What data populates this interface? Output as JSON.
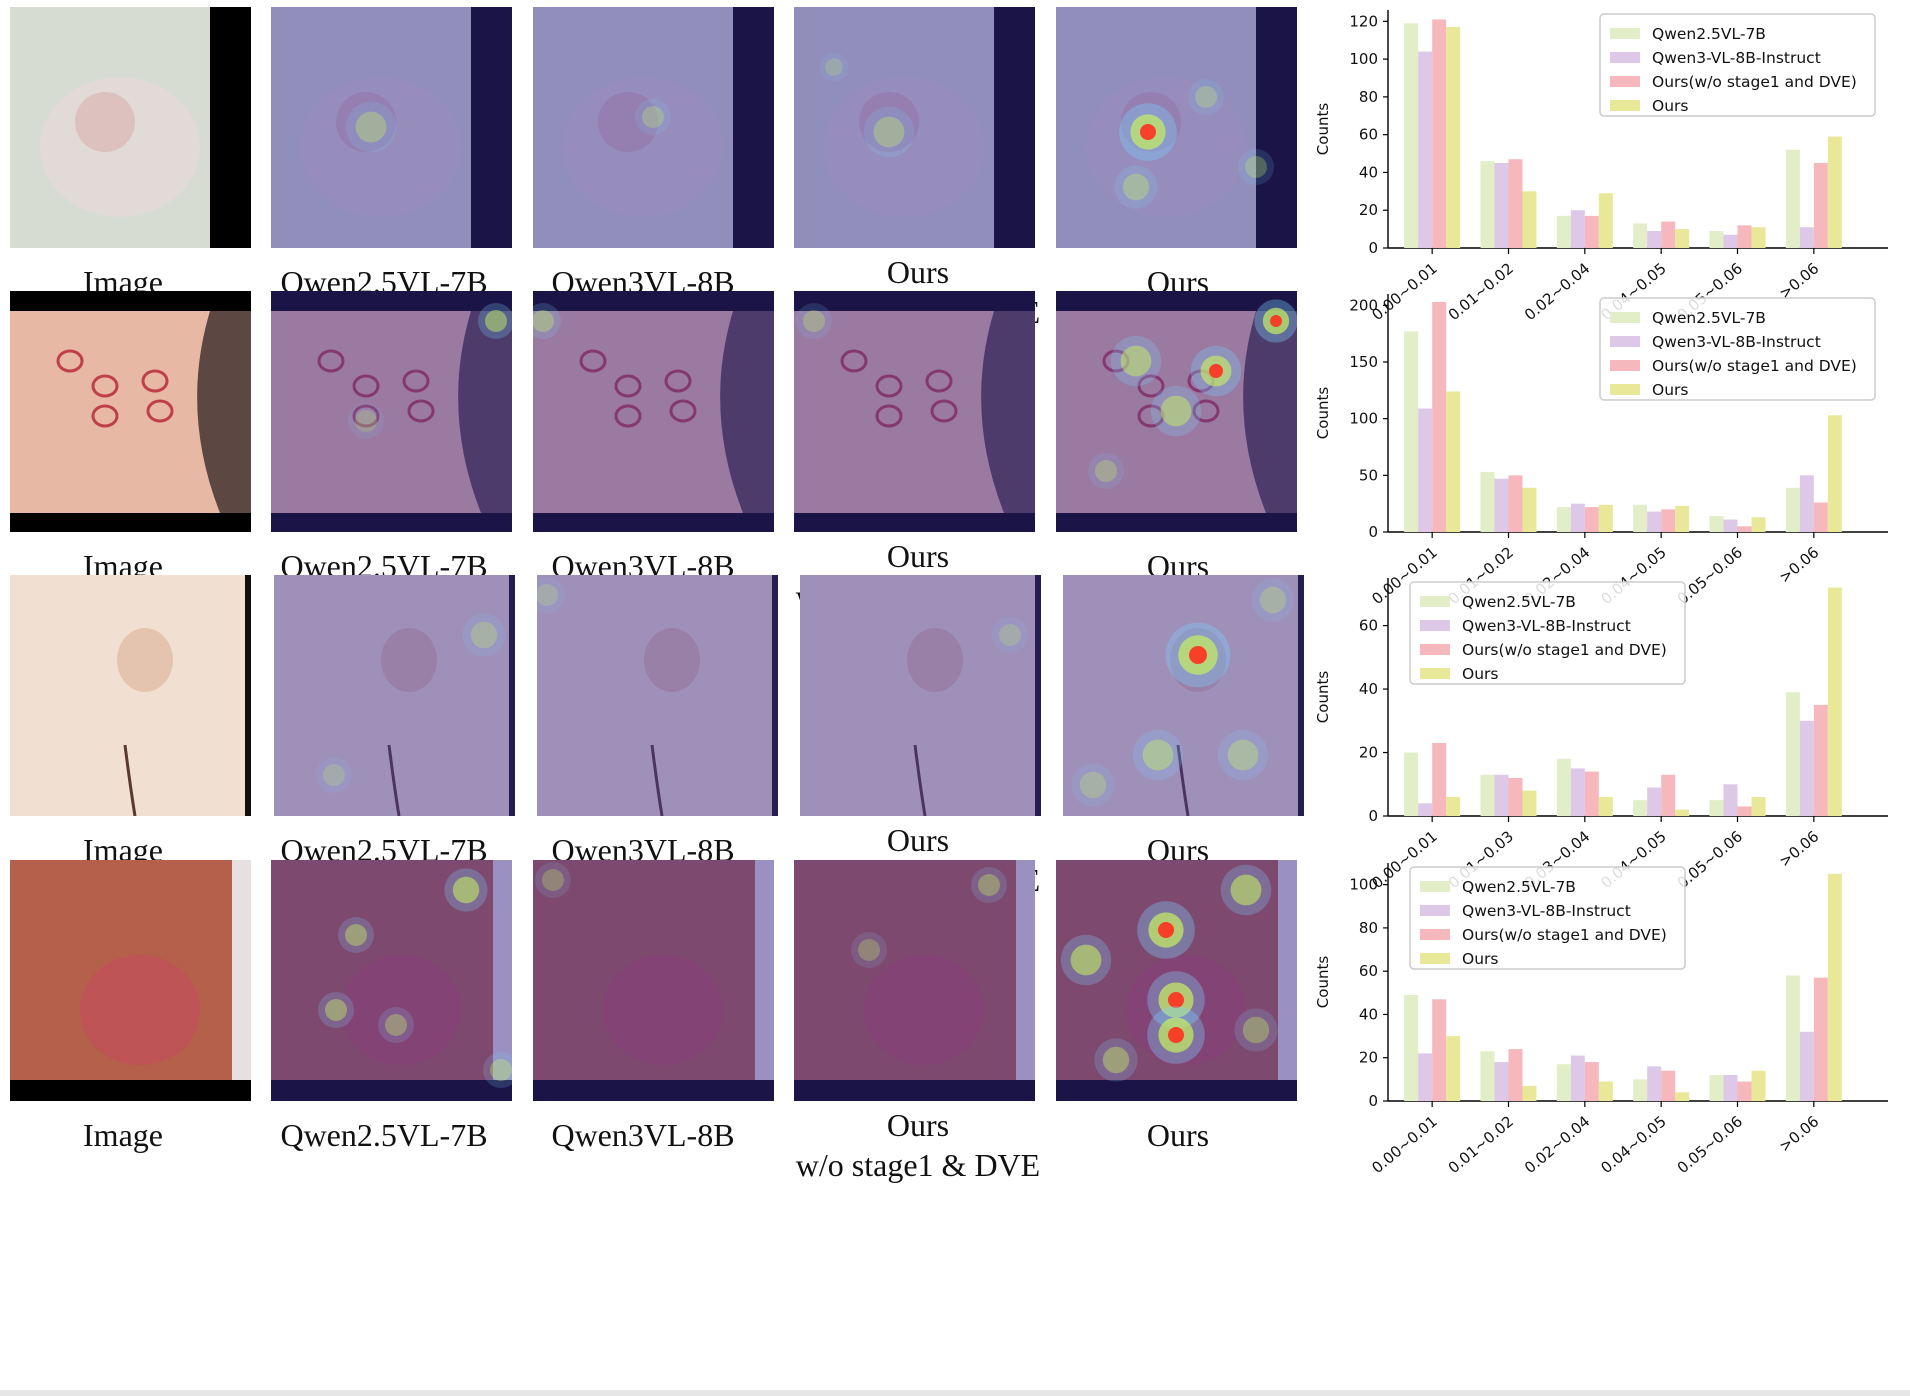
{
  "rows": [
    {
      "labels": [
        "Image",
        "Qwen2.5VL-7B",
        "Qwen3VL-8B",
        "Ours",
        "w/o stage1 & DVE",
        "Ours"
      ],
      "skin": "#d7dcd3",
      "frame": "#000000"
    },
    {
      "labels": [
        "Image",
        "Qwen2.5VL-7B",
        "Qwen3VL-8B",
        "Ours",
        "w/o stage1 & DVE",
        "Ours"
      ],
      "skin": "#e7b8a4",
      "frame": "#000000"
    },
    {
      "labels": [
        "Image",
        "Qwen2.5VL-7B",
        "Qwen3VL-8B",
        "Ours",
        "w/o stage1 & DVE",
        "Ours"
      ],
      "skin": "#f1e0d2",
      "frame": "#111111"
    },
    {
      "labels": [
        "Image",
        "Qwen2.5VL-7B",
        "Qwen3VL-8B",
        "Ours",
        "w/o stage1 & DVE",
        "Ours"
      ],
      "skin": "#b5604a",
      "frame": "#000000"
    }
  ],
  "chart_data": [
    {
      "type": "bar",
      "categories": [
        "0.00~0.01",
        "0.01~0.02",
        "0.02~0.04",
        "0.04~0.05",
        "0.05~0.06",
        ">0.06"
      ],
      "series": [
        {
          "name": "Qwen2.5VL-7B",
          "values": [
            119,
            46,
            17,
            13,
            9,
            52
          ]
        },
        {
          "name": "Qwen3-VL-8B-Instruct",
          "values": [
            104,
            45,
            20,
            9,
            7,
            11
          ]
        },
        {
          "name": "Ours(w/o stage1 and DVE)",
          "values": [
            121,
            47,
            17,
            14,
            12,
            45
          ]
        },
        {
          "name": "Ours",
          "values": [
            117,
            30,
            29,
            10,
            11,
            59
          ]
        }
      ],
      "ylabel": "Counts",
      "ylim": [
        0,
        126
      ],
      "yticks": [
        0,
        20,
        40,
        60,
        80,
        100,
        120
      ],
      "legend": "top-right"
    },
    {
      "type": "bar",
      "categories": [
        "0.00~0.01",
        "0.01~0.02",
        "0.02~0.04",
        "0.04~0.05",
        "0.05~0.06",
        ">0.06"
      ],
      "series": [
        {
          "name": "Qwen2.5VL-7B",
          "values": [
            177,
            53,
            22,
            24,
            14,
            39
          ]
        },
        {
          "name": "Qwen3-VL-8B-Instruct",
          "values": [
            109,
            47,
            25,
            18,
            11,
            50
          ]
        },
        {
          "name": "Ours(w/o stage1 and DVE)",
          "values": [
            203,
            50,
            22,
            20,
            5,
            26
          ]
        },
        {
          "name": "Ours",
          "values": [
            124,
            39,
            24,
            23,
            13,
            103
          ]
        }
      ],
      "ylabel": "Counts",
      "ylim": [
        0,
        210
      ],
      "yticks": [
        0,
        50,
        100,
        150,
        200
      ],
      "legend": "top-right"
    },
    {
      "type": "bar",
      "categories": [
        "0.00~0.01",
        "0.01~0.03",
        "0.03~0.04",
        "0.04~0.05",
        "0.05~0.06",
        ">0.06"
      ],
      "series": [
        {
          "name": "Qwen2.5VL-7B",
          "values": [
            20,
            13,
            18,
            5,
            5,
            39
          ]
        },
        {
          "name": "Qwen3-VL-8B-Instruct",
          "values": [
            4,
            13,
            15,
            9,
            10,
            30
          ]
        },
        {
          "name": "Ours(w/o stage1 and DVE)",
          "values": [
            23,
            12,
            14,
            13,
            3,
            35
          ]
        },
        {
          "name": "Ours",
          "values": [
            6,
            8,
            6,
            2,
            6,
            72
          ]
        }
      ],
      "ylabel": "Counts",
      "ylim": [
        0,
        75
      ],
      "yticks": [
        0,
        20,
        40,
        60
      ],
      "legend": "top-left"
    },
    {
      "type": "bar",
      "categories": [
        "0.00~0.01",
        "0.01~0.02",
        "0.02~0.04",
        "0.04~0.05",
        "0.05~0.06",
        ">0.06"
      ],
      "series": [
        {
          "name": "Qwen2.5VL-7B",
          "values": [
            49,
            23,
            17,
            10,
            12,
            58
          ]
        },
        {
          "name": "Qwen3-VL-8B-Instruct",
          "values": [
            22,
            18,
            21,
            16,
            12,
            32
          ]
        },
        {
          "name": "Ours(w/o stage1 and DVE)",
          "values": [
            47,
            24,
            18,
            14,
            9,
            57
          ]
        },
        {
          "name": "Ours",
          "values": [
            30,
            7,
            9,
            4,
            14,
            105
          ]
        }
      ],
      "ylabel": "Counts",
      "ylim": [
        0,
        110
      ],
      "yticks": [
        0,
        20,
        40,
        60,
        80,
        100
      ],
      "legend": "top-left"
    }
  ],
  "colors": {
    "series": [
      "#e2eec8",
      "#ddc8e8",
      "#f6b8bc",
      "#e8e898"
    ],
    "heat_base": "#3b2f9e"
  }
}
